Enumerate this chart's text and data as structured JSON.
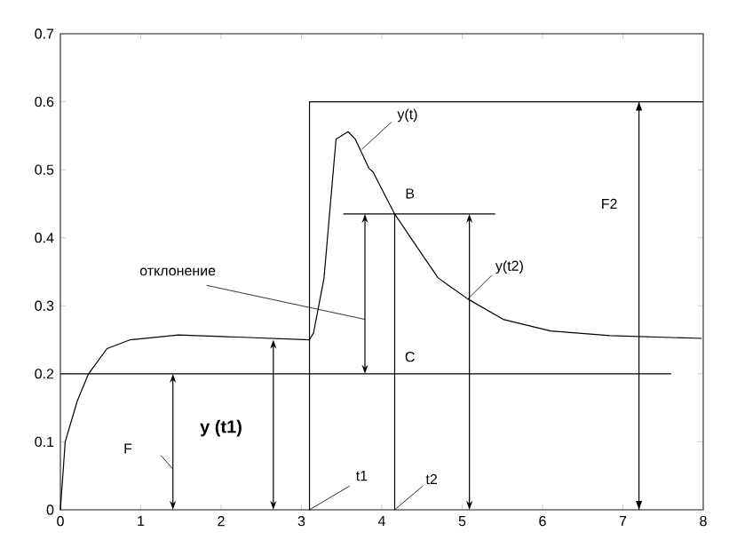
{
  "chart_data": {
    "type": "line",
    "xlim": [
      0,
      8
    ],
    "ylim": [
      0,
      0.7
    ],
    "xticks": [
      0,
      1,
      2,
      3,
      4,
      5,
      6,
      7,
      8
    ],
    "yticks": [
      0,
      0.1,
      0.2,
      0.3,
      0.4,
      0.5,
      0.6,
      0.7
    ],
    "grid": false,
    "marker": "none",
    "line_style": "solid",
    "series": [
      {
        "color": "#000000",
        "x": [
          0,
          3.1,
          3.1,
          8
        ],
        "values": [
          0.2,
          0.2,
          0.6,
          0.6
        ]
      },
      {
        "color": "#000000",
        "x": [
          0,
          0.06,
          0.21,
          0.35,
          0.58,
          0.87,
          1.47,
          2.2,
          3.1,
          3.15,
          3.28,
          3.43,
          3.58,
          3.67,
          3.84,
          3.89,
          4.16,
          4.4,
          4.7,
          5.07,
          5.51,
          6.1,
          6.84,
          7.98
        ],
        "values": [
          0,
          0.1,
          0.16,
          0.2,
          0.237,
          0.25,
          0.257,
          0.254,
          0.25,
          0.26,
          0.34,
          0.545,
          0.556,
          0.545,
          0.502,
          0.497,
          0.435,
          0.393,
          0.341,
          0.31,
          0.28,
          0.263,
          0.256,
          0.252
        ]
      },
      {
        "color": "#000000",
        "x": [
          3.1,
          7.6
        ],
        "values": [
          0.2,
          0.2
        ]
      },
      {
        "color": "#000000",
        "x": [
          3.52,
          5.41
        ],
        "values": [
          0.435,
          0.435
        ]
      },
      {
        "color": "#000000",
        "x": [
          4.16,
          4.16
        ],
        "values": [
          0,
          0.435
        ]
      },
      {
        "color": "#000000",
        "x": [
          3.1,
          3.1
        ],
        "values": [
          0,
          0.2
        ]
      },
      {
        "color": "#000000",
        "x": [
          7.2,
          7.2
        ],
        "values": [
          0,
          0.6
        ]
      }
    ],
    "annotations": [
      {
        "text": "y(t)",
        "x": 3.75,
        "y": 0.53
      },
      {
        "text": "B",
        "x": 4.16,
        "y": 0.435
      },
      "отклонение",
      {
        "text": "y(t2)",
        "x": 5.07,
        "y": 0.31
      },
      {
        "text": "C",
        "x": 4.16,
        "y": 0.2
      },
      "F2",
      "F",
      "y (t1)",
      {
        "text": "t1",
        "x": 3.1,
        "y": 0
      },
      {
        "text": "t2",
        "x": 4.16,
        "y": 0
      }
    ]
  }
}
